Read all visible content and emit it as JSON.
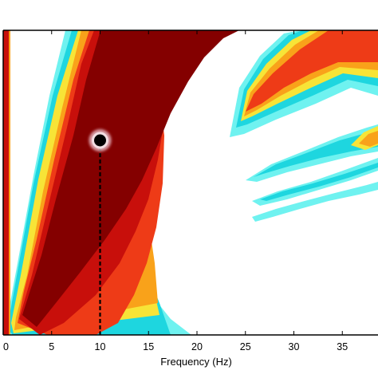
{
  "chart_data": {
    "type": "heatmap",
    "title": "",
    "xlabel": "Frequency (Hz)",
    "ylabel": "",
    "xlim": [
      0,
      39
    ],
    "x_ticks": [
      0,
      5,
      10,
      15,
      20,
      25,
      30,
      35
    ],
    "x_tick_labels": [
      "0",
      "5",
      "10",
      "15",
      "20",
      "25",
      "30",
      "35"
    ],
    "colormap": [
      "#6ff2f0",
      "#1ed6df",
      "#f7e437",
      "#f9a21a",
      "#ee3b17",
      "#c80f0b",
      "#840000"
    ],
    "marker": {
      "x": 10,
      "color": "#000000",
      "halo_color": "#e6b8c2",
      "line_style": "dashed"
    },
    "colors": {
      "background": "#ffffff",
      "axis": "#000000"
    }
  }
}
